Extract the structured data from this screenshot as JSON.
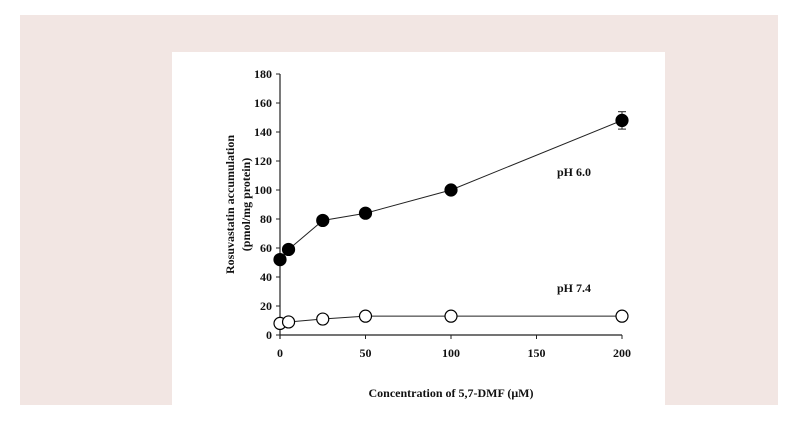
{
  "chart_data": {
    "type": "line",
    "title": "",
    "xlabel": "Concentration of 5,7-DMF (μM)",
    "ylabel_line1": "Rosuvastatin accumulation",
    "ylabel_line2": "(pmol/mg protein)",
    "xlim": [
      0,
      200
    ],
    "ylim": [
      0,
      180
    ],
    "xticks": [
      0,
      50,
      100,
      150,
      200
    ],
    "yticks": [
      0,
      20,
      40,
      60,
      80,
      100,
      120,
      140,
      160,
      180
    ],
    "grid": false,
    "series": [
      {
        "name": "pH 6.0",
        "marker": "filled-circle",
        "x": [
          0,
          5,
          25,
          50,
          100,
          200
        ],
        "y": [
          52,
          59,
          79,
          84,
          100,
          148
        ],
        "error": [
          0,
          0,
          0,
          0,
          0,
          6
        ]
      },
      {
        "name": "pH 7.4",
        "marker": "open-circle",
        "x": [
          0,
          5,
          25,
          50,
          100,
          200
        ],
        "y": [
          8,
          9,
          11,
          13,
          13,
          13
        ],
        "error": [
          0,
          0,
          0,
          0,
          0,
          0
        ]
      }
    ],
    "annotations": [
      {
        "text": "pH 6.0",
        "series": 0
      },
      {
        "text": "pH 7.4",
        "series": 1
      }
    ]
  }
}
